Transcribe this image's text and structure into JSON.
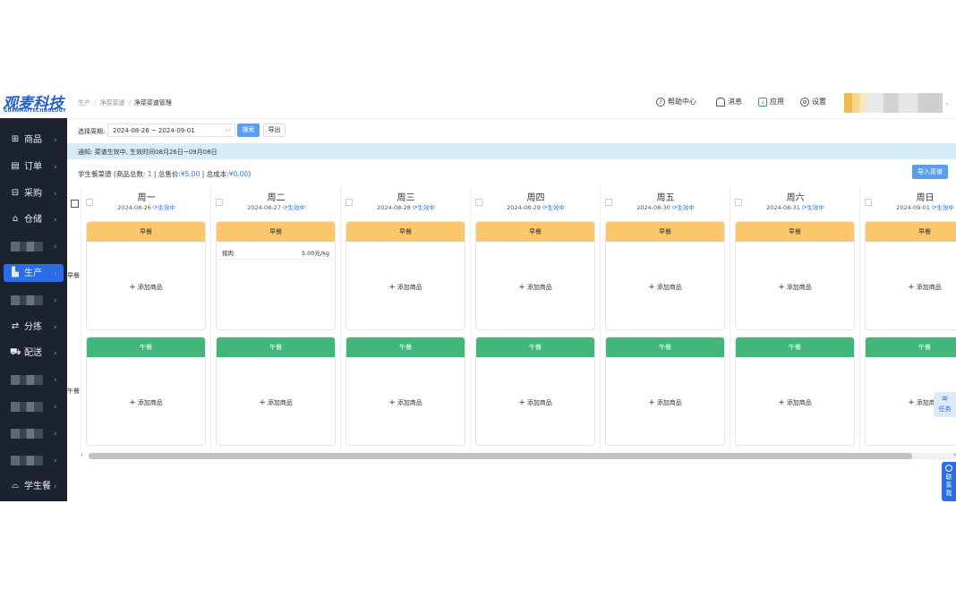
{
  "brand": {
    "name": "观麦科技",
    "sub": "GUANMAITECHNOLOGY"
  },
  "sidebar": {
    "items": [
      {
        "label": "商品",
        "icon": "grid-icon"
      },
      {
        "label": "订单",
        "icon": "order-icon"
      },
      {
        "label": "采购",
        "icon": "purchase-icon"
      },
      {
        "label": "仓储",
        "icon": "warehouse-icon"
      },
      {
        "label": "",
        "icon": "blurred"
      },
      {
        "label": "生产",
        "icon": "factory-icon"
      },
      {
        "label": "",
        "icon": "blurred"
      },
      {
        "label": "分拣",
        "icon": "sort-icon"
      },
      {
        "label": "配送",
        "icon": "truck-icon"
      },
      {
        "label": "",
        "icon": "blurred"
      },
      {
        "label": "",
        "icon": "blurred"
      },
      {
        "label": "",
        "icon": "blurred"
      },
      {
        "label": "",
        "icon": "blurred"
      },
      {
        "label": "学生餐",
        "icon": "student-meal-icon"
      }
    ],
    "arrow": "›"
  },
  "breadcrumb": {
    "l1": "生产",
    "l2": "净菜菜谱",
    "l3": "净菜菜谱管理",
    "sep": "/"
  },
  "header": {
    "help": "帮助中心",
    "messages": "消息",
    "apps": "应用",
    "settings": "设置"
  },
  "toolbar": {
    "period_label": "选择周期:",
    "period_value": "2024-08-26 ~ 2024-09-01",
    "search": "搜索",
    "export": "导出"
  },
  "notice": "通知: 菜谱生效中, 生效时间08月26日~09月08日",
  "summary": {
    "title": "学生餐菜谱",
    "count_label": "商品总数:",
    "count": "1",
    "price_label": "总售价:",
    "price": "¥5.00",
    "cost_label": "总成本:",
    "cost": "¥0.00",
    "import": "导入菜谱"
  },
  "rows": {
    "breakfast": "早餐",
    "lunch": "午餐"
  },
  "effective": "生效中",
  "add_item": "添加商品",
  "days": [
    {
      "day": "周一",
      "date": "2024-08-26"
    },
    {
      "day": "周二",
      "date": "2024-08-27",
      "item": {
        "name": "猪肉",
        "price": "5.00元/kg"
      }
    },
    {
      "day": "周三",
      "date": "2024-08-28"
    },
    {
      "day": "周四",
      "date": "2024-08-29"
    },
    {
      "day": "周五",
      "date": "2024-08-30"
    },
    {
      "day": "周六",
      "date": "2024-08-31"
    },
    {
      "day": "周日",
      "date": "2024-09-01"
    }
  ],
  "side_float": {
    "task": "任务",
    "contact": "联系我"
  }
}
